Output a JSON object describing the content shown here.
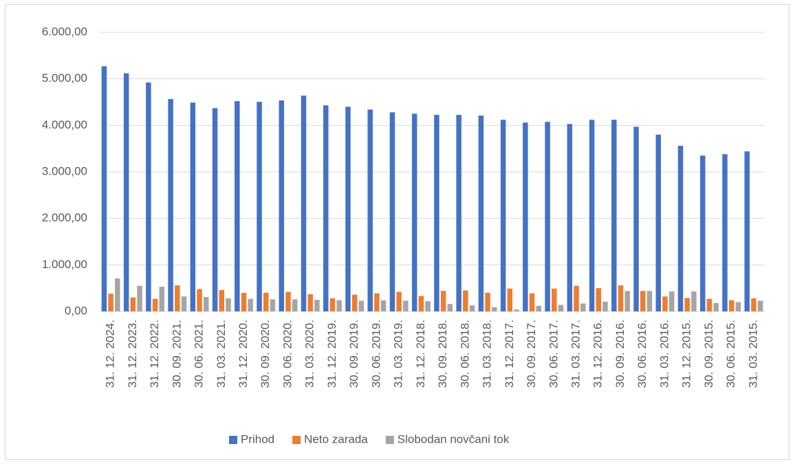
{
  "chart_data": {
    "type": "bar",
    "categories": [
      "31. 12. 2024.",
      "31. 12. 2023.",
      "31. 12. 2022.",
      "30. 09. 2021.",
      "30. 06. 2021.",
      "31. 03. 2021.",
      "31. 12. 2020.",
      "30. 09. 2020.",
      "30. 06. 2020.",
      "31. 03. 2020.",
      "31. 12. 2019.",
      "30. 09. 2019.",
      "30. 06. 2019.",
      "31. 03. 2019.",
      "31. 12. 2018.",
      "30. 09. 2018.",
      "30. 06. 2018.",
      "31. 03. 2018.",
      "31. 12. 2017.",
      "30. 09. 2017.",
      "30. 06. 2017.",
      "31. 03. 2017.",
      "31. 12. 2016.",
      "30. 09. 2016.",
      "30. 06. 2016.",
      "31. 03. 2016.",
      "31. 12. 2015.",
      "30. 09. 2015.",
      "30. 06. 2015.",
      "31. 03. 2015."
    ],
    "series": [
      {
        "name": "Prihod",
        "color": "#4472c4",
        "values": [
          5270,
          5120,
          4920,
          4565,
          4490,
          4370,
          4520,
          4505,
          4535,
          4640,
          4430,
          4400,
          4340,
          4280,
          4250,
          4225,
          4225,
          4210,
          4120,
          4060,
          4075,
          4030,
          4120,
          4120,
          3970,
          3800,
          3560,
          3350,
          3380,
          3440
        ]
      },
      {
        "name": "Neto zarada",
        "color": "#ed7d31",
        "values": [
          380,
          300,
          270,
          560,
          480,
          460,
          400,
          400,
          420,
          370,
          280,
          360,
          390,
          420,
          330,
          440,
          450,
          400,
          490,
          390,
          490,
          550,
          500,
          560,
          440,
          320,
          290,
          270,
          240,
          280
        ]
      },
      {
        "name": "Slobodan novčani tok",
        "color": "#a5a5a5",
        "values": [
          710,
          550,
          530,
          320,
          310,
          280,
          270,
          260,
          260,
          250,
          240,
          230,
          240,
          230,
          220,
          160,
          130,
          90,
          40,
          120,
          140,
          170,
          210,
          440,
          440,
          430,
          430,
          180,
          200,
          230
        ]
      }
    ],
    "ylim": [
      0,
      6000
    ],
    "yticks": [
      {
        "value": 0,
        "label": "0,00"
      },
      {
        "value": 1000,
        "label": "1.000,00"
      },
      {
        "value": 2000,
        "label": "2.000,00"
      },
      {
        "value": 3000,
        "label": "3.000,00"
      },
      {
        "value": 4000,
        "label": "4.000,00"
      },
      {
        "value": 5000,
        "label": "5.000,00"
      },
      {
        "value": 6000,
        "label": "6.000,00"
      }
    ],
    "grid": true,
    "legend": "bottom"
  }
}
